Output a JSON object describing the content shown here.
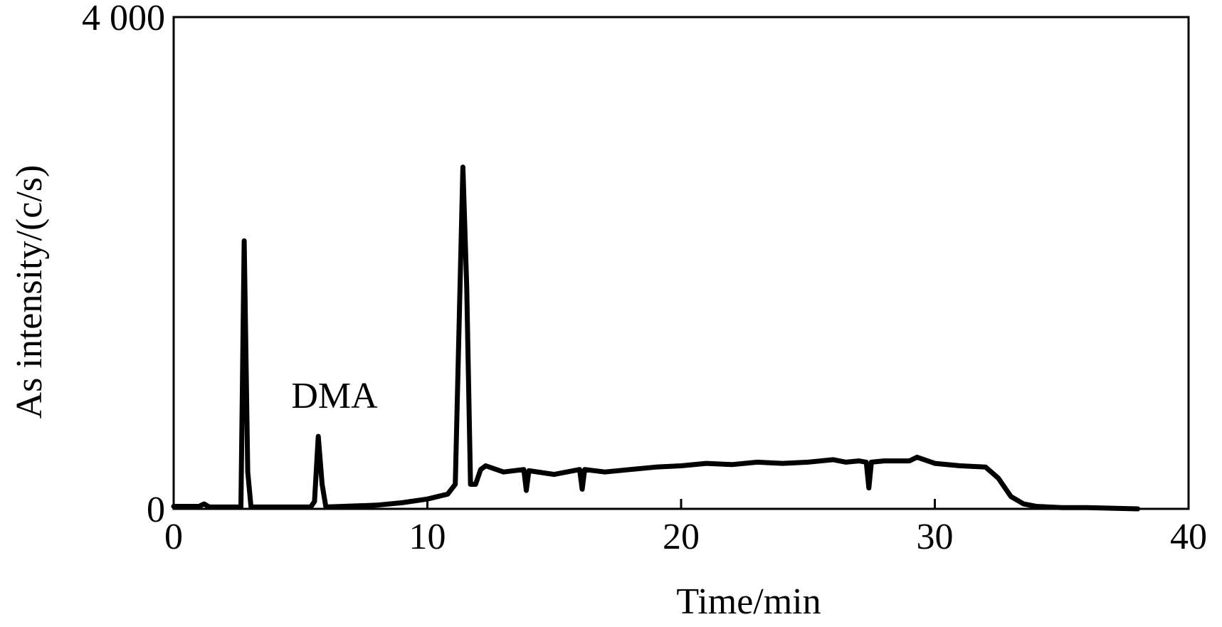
{
  "chart_data": {
    "type": "line",
    "xlabel": "Time/min",
    "ylabel": "As intensity/(c/s)",
    "annotations": [
      "DMA"
    ],
    "x": [
      0,
      1,
      1.2,
      1.4,
      2.5,
      2.65,
      2.78,
      2.92,
      3.05,
      5.4,
      5.55,
      5.7,
      5.85,
      6.0,
      8,
      9,
      10,
      10.8,
      11.1,
      11.25,
      11.4,
      11.55,
      11.7,
      11.9,
      12.1,
      12.3,
      13,
      13.8,
      13.9,
      14,
      15,
      16,
      16.1,
      16.2,
      17,
      18,
      19,
      20,
      21,
      22,
      23,
      24,
      25,
      26,
      26.5,
      27,
      27.3,
      27.4,
      27.5,
      28,
      29,
      29.3,
      30,
      31,
      32,
      32.5,
      33,
      33.5,
      34,
      35,
      36,
      38
    ],
    "series": [
      {
        "color": "#000000",
        "values": [
          20,
          20,
          40,
          15,
          15,
          15,
          2180,
          300,
          15,
          15,
          60,
          590,
          200,
          15,
          30,
          50,
          80,
          120,
          200,
          1500,
          2780,
          1800,
          200,
          200,
          320,
          350,
          300,
          320,
          150,
          310,
          280,
          320,
          160,
          320,
          300,
          320,
          340,
          350,
          370,
          360,
          380,
          370,
          380,
          400,
          380,
          390,
          380,
          170,
          380,
          390,
          390,
          420,
          370,
          350,
          340,
          250,
          100,
          40,
          20,
          10,
          10,
          0
        ]
      }
    ],
    "xlim": [
      0,
      40
    ],
    "xticks": [
      0,
      10,
      20,
      30,
      40
    ],
    "ylim": [
      0,
      4000
    ],
    "yticks": [
      0,
      {
        "value": 4000,
        "label": "4 000"
      }
    ]
  }
}
